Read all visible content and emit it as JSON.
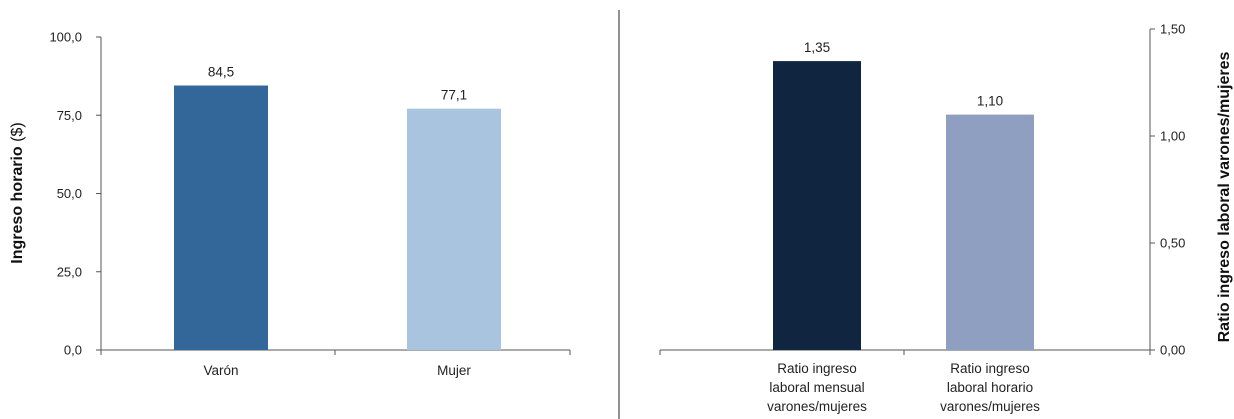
{
  "colors": {
    "varon_bar": "#336699",
    "mujer_bar": "#A9C4DF",
    "ratio_mensual_bar": "#0F2540",
    "ratio_horario_bar": "#8E9FC2",
    "axis": "#555555",
    "divider": "#222222"
  },
  "chart_data": [
    {
      "type": "bar",
      "ylabel": "Ingreso horario",
      "ylabel_unit": "($)",
      "ylim": [
        0,
        100
      ],
      "yticks": [
        "0,0",
        "25,0",
        "50,0",
        "75,0",
        "100,0"
      ],
      "ytick_values": [
        0,
        25,
        50,
        75,
        100
      ],
      "categories": [
        "Varón",
        "Mujer"
      ],
      "values": [
        84.5,
        77.1
      ],
      "value_labels": [
        "84,5",
        "77,1"
      ],
      "grid": false,
      "legend": "none"
    },
    {
      "type": "bar",
      "ylabel": "Ratio ingreso laboral varones/mujeres",
      "y_axis_side": "right",
      "ylim": [
        0,
        1.5
      ],
      "yticks": [
        "0,00",
        "0,50",
        "1,00",
        "1,50"
      ],
      "ytick_values": [
        0,
        0.5,
        1.0,
        1.5
      ],
      "categories": [
        [
          "Ratio ingreso",
          "laboral mensual",
          "varones/mujeres"
        ],
        [
          "Ratio ingreso",
          "laboral horario",
          "varones/mujeres"
        ]
      ],
      "values": [
        1.35,
        1.1
      ],
      "value_labels": [
        "1,35",
        "1,10"
      ],
      "grid": false,
      "legend": "none"
    }
  ]
}
